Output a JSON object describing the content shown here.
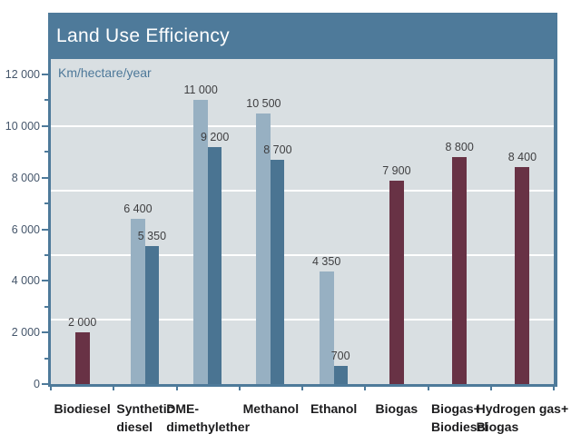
{
  "chart_data": {
    "type": "bar",
    "title": "Land Use Efficiency",
    "ylabel": "Km/hectare/year",
    "ylim": [
      0,
      12600
    ],
    "grid": "on",
    "legend": "none",
    "y_major_ticks": [
      {
        "value": 0,
        "label": "0"
      },
      {
        "value": 2000,
        "label": "2 000"
      },
      {
        "value": 4000,
        "label": "4 000"
      },
      {
        "value": 6000,
        "label": "6 000"
      },
      {
        "value": 8000,
        "label": "8 000"
      },
      {
        "value": 10000,
        "label": "10 000"
      },
      {
        "value": 12000,
        "label": "12 000"
      }
    ],
    "y_minor_ticks": [
      1000,
      3000,
      5000,
      7000,
      9000,
      11000
    ],
    "gridline_values": [
      2500,
      5000,
      7500,
      10000
    ],
    "categories": [
      {
        "label": "Biodiesel",
        "label_lines": [
          "Biodiesel"
        ],
        "bars": [
          {
            "value": 2000,
            "label": "2 000",
            "color": "maroon"
          }
        ]
      },
      {
        "label": "Synthetic diesel",
        "label_lines": [
          "Synthetic",
          "diesel"
        ],
        "bars": [
          {
            "value": 6400,
            "label": "6 400",
            "color": "light_blue"
          },
          {
            "value": 5350,
            "label": "5 350",
            "color": "dark_blue"
          }
        ]
      },
      {
        "label": "DME-dimethylether",
        "label_lines": [
          "DME-",
          "dimethylether"
        ],
        "bars": [
          {
            "value": 11000,
            "label": "11 000",
            "color": "light_blue"
          },
          {
            "value": 9200,
            "label": "9 200",
            "color": "dark_blue"
          }
        ]
      },
      {
        "label": "Methanol",
        "label_lines": [
          "Methanol"
        ],
        "bars": [
          {
            "value": 10500,
            "label": "10 500",
            "color": "light_blue"
          },
          {
            "value": 8700,
            "label": "8 700",
            "color": "dark_blue"
          }
        ]
      },
      {
        "label": "Ethanol",
        "label_lines": [
          "Ethanol"
        ],
        "bars": [
          {
            "value": 4350,
            "label": "4 350",
            "color": "light_blue"
          },
          {
            "value": 700,
            "label": "700",
            "color": "dark_blue"
          }
        ]
      },
      {
        "label": "Biogas",
        "label_lines": [
          "Biogas"
        ],
        "bars": [
          {
            "value": 7900,
            "label": "7 900",
            "color": "maroon"
          }
        ]
      },
      {
        "label": "Biogas+ Biodiesel",
        "label_lines": [
          "Biogas+",
          "Biodiesel"
        ],
        "bars": [
          {
            "value": 8800,
            "label": "8 800",
            "color": "maroon"
          }
        ]
      },
      {
        "label": "Hydrogen gas+ Biogas",
        "label_lines": [
          "Hydrogen gas+",
          "Biogas"
        ],
        "bars": [
          {
            "value": 8400,
            "label": "8 400",
            "color": "maroon"
          }
        ]
      }
    ],
    "colors": {
      "header_bg": "#4e7a9a",
      "title_text": "#ffffff",
      "plot_bg": "#d9dfe2",
      "axis": "#4e7a9a",
      "gridline": "#ffffff",
      "light_blue": "#97b0c2",
      "dark_blue": "#4a7492",
      "maroon": "#683245",
      "value_text": "#3e3e40",
      "y_label_text": "#45566b",
      "unit_text": "#4d7899",
      "category_text": "#1c1c1e"
    }
  }
}
